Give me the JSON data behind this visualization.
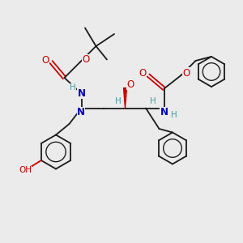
{
  "bg_color": "#ebebeb",
  "bond_color": "#1a1a1a",
  "N_color": "#0000bb",
  "O_color": "#cc0000",
  "H_color": "#4d9999",
  "figsize": [
    3.0,
    3.0
  ],
  "dpi": 100,
  "xlim": [
    0,
    10
  ],
  "ylim": [
    0,
    10
  ]
}
